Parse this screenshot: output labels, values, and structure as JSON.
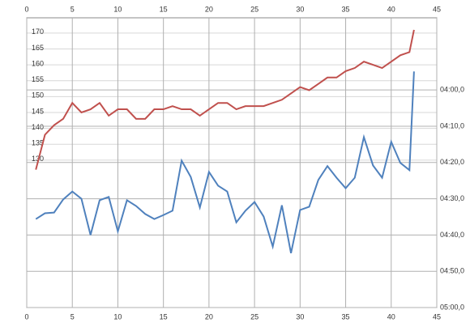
{
  "chart_data": {
    "type": "line",
    "x": [
      1,
      2,
      3,
      4,
      5,
      6,
      7,
      8,
      9,
      10,
      11,
      12,
      13,
      14,
      15,
      16,
      17,
      18,
      19,
      20,
      21,
      22,
      23,
      24,
      25,
      26,
      27,
      28,
      29,
      30,
      31,
      32,
      33,
      34,
      35,
      36,
      37,
      38,
      39,
      40,
      41,
      42,
      42.5
    ],
    "series": [
      {
        "color": "#c0504d",
        "values": [
          127,
          138,
          141,
          143,
          148,
          145,
          146,
          148,
          144,
          146,
          146,
          143,
          143,
          146,
          146,
          147,
          146,
          146,
          144,
          146,
          148,
          148,
          146,
          147,
          147,
          147,
          148,
          149,
          151,
          153,
          152,
          154,
          156,
          156,
          158,
          159,
          161,
          160,
          159,
          161,
          163,
          164,
          171
        ]
      },
      {
        "color": "#4f81bd",
        "axis": "y2",
        "values": [
          275.6,
          274,
          273.8,
          270.2,
          268,
          270,
          280,
          270.4,
          269.5,
          279,
          270.4,
          272,
          274.2,
          275.6,
          274.5,
          273.3,
          259.5,
          264,
          272.4,
          262.6,
          266.4,
          268,
          276.5,
          273.3,
          270.9,
          274.9,
          283.2,
          271.8,
          285,
          273.1,
          272.2,
          264.8,
          261,
          264.2,
          267.1,
          264.2,
          253,
          260.8,
          264.2,
          254.3,
          260.1,
          262.1,
          234.9
        ]
      }
    ],
    "xlim": [
      0,
      45
    ],
    "xticks": [
      0,
      5,
      10,
      15,
      20,
      25,
      30,
      35,
      40,
      45
    ],
    "ylim": [
      83.6,
      174.8
    ],
    "yticks": [
      130,
      135,
      140,
      145,
      150,
      155,
      160,
      165,
      170
    ],
    "y2lim": [
      300,
      220.1
    ],
    "y2ticks": [
      {
        "value": 240,
        "label": "04:00,0"
      },
      {
        "value": 250,
        "label": "04:10,0"
      },
      {
        "value": 260,
        "label": "04:20,0"
      },
      {
        "value": 270,
        "label": "04:30,0"
      },
      {
        "value": 280,
        "label": "04:40,0"
      },
      {
        "value": 290,
        "label": "04:50,0"
      },
      {
        "value": 300,
        "label": "05:00,0"
      }
    ],
    "grid": true
  }
}
